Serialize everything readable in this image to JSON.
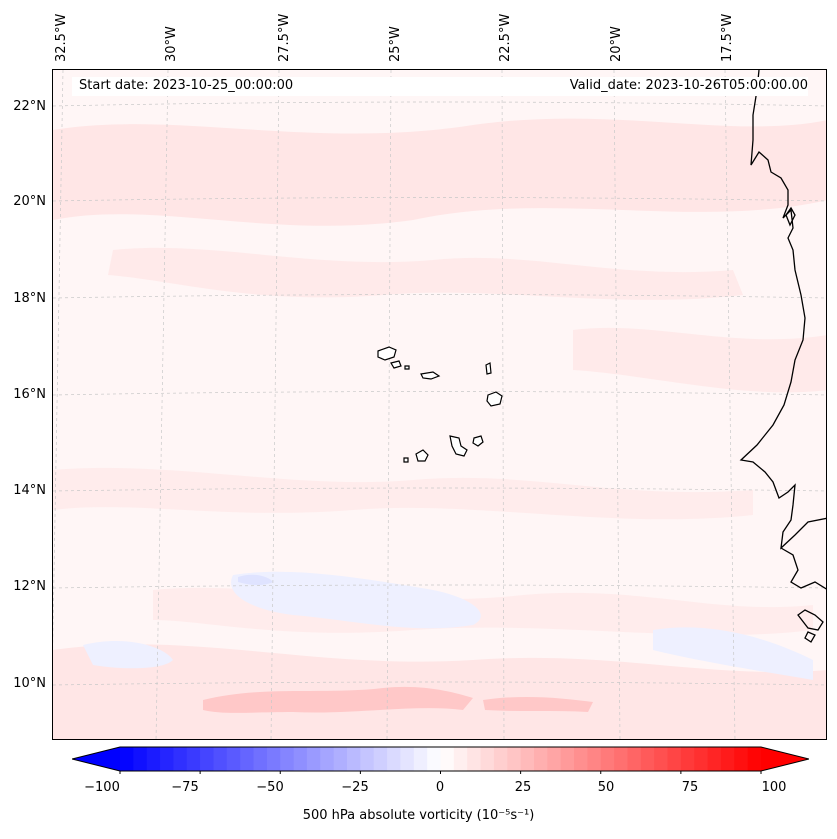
{
  "map": {
    "start_date_text": "Start date: 2023-10-25_00:00:00",
    "valid_date_text": "Valid_date: 2023-10-26T05:00:00.00",
    "longitude_labels": [
      "32.5°W",
      "30°W",
      "27.5°W",
      "25°W",
      "22.5°W",
      "20°W",
      "17.5°W"
    ],
    "latitude_labels": [
      "22°N",
      "20°N",
      "18°N",
      "16°N",
      "14°N",
      "12°N",
      "10°N"
    ],
    "field": "500 hPa absolute vorticity",
    "background_color": "#fff6f6",
    "coastline_color": "#000000",
    "gridline_color": "#c8c8c8"
  },
  "colorbar": {
    "label": "500 hPa absolute vorticity (10⁻⁵s⁻¹)",
    "ticks": [
      "−100",
      "−75",
      "−50",
      "−25",
      "0",
      "25",
      "50",
      "75",
      "100"
    ],
    "min": -100,
    "max": 100,
    "levels": 48,
    "low_color": "#0000ff",
    "mid_color": "#ffffff",
    "high_color": "#ff0000"
  }
}
